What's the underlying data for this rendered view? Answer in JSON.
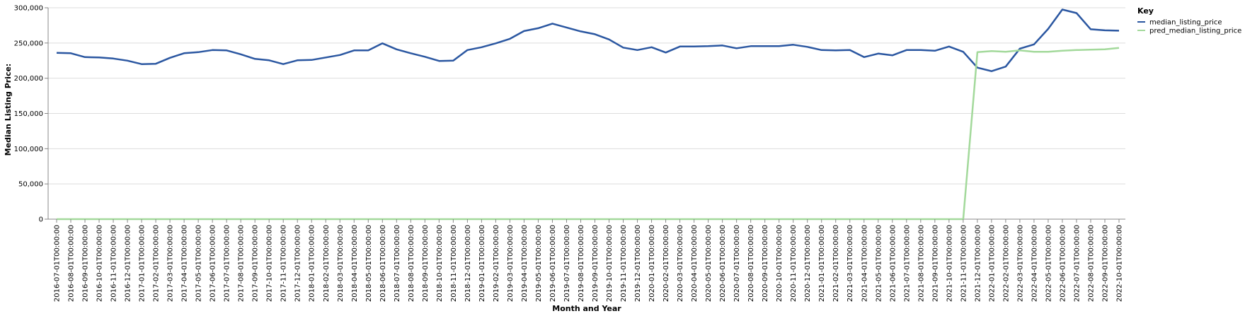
{
  "chart_data": {
    "type": "line",
    "xlabel": "Month and Year",
    "ylabel": "Median Listing Price:",
    "ylim": [
      0,
      300000
    ],
    "y_ticks": [
      "0",
      "50,000",
      "100,000",
      "150,000",
      "200,000",
      "250,000",
      "300,000"
    ],
    "y_tick_values": [
      0,
      50000,
      100000,
      150000,
      200000,
      250000,
      300000
    ],
    "grid": true,
    "legend_position": "top-right",
    "legend_title": "Key",
    "x": [
      "2016-07-01T00:00:00",
      "2016-08-01T00:00:00",
      "2016-09-01T00:00:00",
      "2016-10-01T00:00:00",
      "2016-11-01T00:00:00",
      "2016-12-01T00:00:00",
      "2017-01-01T00:00:00",
      "2017-02-01T00:00:00",
      "2017-03-01T00:00:00",
      "2017-04-01T00:00:00",
      "2017-05-01T00:00:00",
      "2017-06-01T00:00:00",
      "2017-07-01T00:00:00",
      "2017-08-01T00:00:00",
      "2017-09-01T00:00:00",
      "2017-10-01T00:00:00",
      "2017-11-01T00:00:00",
      "2017-12-01T00:00:00",
      "2018-01-01T00:00:00",
      "2018-02-01T00:00:00",
      "2018-03-01T00:00:00",
      "2018-04-01T00:00:00",
      "2018-05-01T00:00:00",
      "2018-06-01T00:00:00",
      "2018-07-01T00:00:00",
      "2018-08-01T00:00:00",
      "2018-09-01T00:00:00",
      "2018-10-01T00:00:00",
      "2018-11-01T00:00:00",
      "2018-12-01T00:00:00",
      "2019-01-01T00:00:00",
      "2019-02-01T00:00:00",
      "2019-03-01T00:00:00",
      "2019-04-01T00:00:00",
      "2019-05-01T00:00:00",
      "2019-06-01T00:00:00",
      "2019-07-01T00:00:00",
      "2019-08-01T00:00:00",
      "2019-09-01T00:00:00",
      "2019-10-01T00:00:00",
      "2019-11-01T00:00:00",
      "2019-12-01T00:00:00",
      "2020-01-01T00:00:00",
      "2020-02-01T00:00:00",
      "2020-03-01T00:00:00",
      "2020-04-01T00:00:00",
      "2020-05-01T00:00:00",
      "2020-06-01T00:00:00",
      "2020-07-01T00:00:00",
      "2020-08-01T00:00:00",
      "2020-09-01T00:00:00",
      "2020-10-01T00:00:00",
      "2020-11-01T00:00:00",
      "2020-12-01T00:00:00",
      "2021-01-01T00:00:00",
      "2021-02-01T00:00:00",
      "2021-03-01T00:00:00",
      "2021-04-01T00:00:00",
      "2021-05-01T00:00:00",
      "2021-06-01T00:00:00",
      "2021-07-01T00:00:00",
      "2021-08-01T00:00:00",
      "2021-09-01T00:00:00",
      "2021-10-01T00:00:00",
      "2021-11-01T00:00:00",
      "2021-12-01T00:00:00",
      "2022-01-01T00:00:00",
      "2022-02-01T00:00:00",
      "2022-03-01T00:00:00",
      "2022-04-01T00:00:00",
      "2022-05-01T00:00:00",
      "2022-06-01T00:00:00",
      "2022-07-01T00:00:00",
      "2022-08-01T00:00:00",
      "2022-09-01T00:00:00",
      "2022-10-01T00:00:00"
    ],
    "series": [
      {
        "name": "median_listing_price",
        "color": "#2b57a1",
        "values": [
          236000,
          235500,
          230000,
          229500,
          228000,
          225000,
          220000,
          220500,
          229000,
          235500,
          237000,
          240000,
          239500,
          234000,
          227500,
          225500,
          220000,
          225500,
          226000,
          229500,
          233000,
          239500,
          239500,
          249500,
          241000,
          235500,
          230500,
          224500,
          225000,
          240000,
          244000,
          249500,
          256000,
          267000,
          271000,
          277500,
          272000,
          266500,
          262500,
          255000,
          243500,
          240000,
          244000,
          236500,
          245000,
          245000,
          245500,
          246500,
          242500,
          245500,
          245500,
          245500,
          247500,
          244500,
          240000,
          239500,
          240000,
          230000,
          235000,
          232500,
          240000,
          240000,
          239000,
          245000,
          237500,
          215000,
          210000,
          216500,
          242000,
          248000,
          270000,
          297500,
          292500,
          269500,
          268000,
          267500
        ]
      },
      {
        "name": "pred_median_listing_price",
        "color": "#a3d99b",
        "values": [
          0,
          0,
          0,
          0,
          0,
          0,
          0,
          0,
          0,
          0,
          0,
          0,
          0,
          0,
          0,
          0,
          0,
          0,
          0,
          0,
          0,
          0,
          0,
          0,
          0,
          0,
          0,
          0,
          0,
          0,
          0,
          0,
          0,
          0,
          0,
          0,
          0,
          0,
          0,
          0,
          0,
          0,
          0,
          0,
          0,
          0,
          0,
          0,
          0,
          0,
          0,
          0,
          0,
          0,
          0,
          0,
          0,
          0,
          0,
          0,
          0,
          0,
          0,
          0,
          0,
          237000,
          238500,
          237500,
          239500,
          237500,
          237500,
          239000,
          240000,
          240500,
          241000,
          243000
        ]
      }
    ]
  }
}
